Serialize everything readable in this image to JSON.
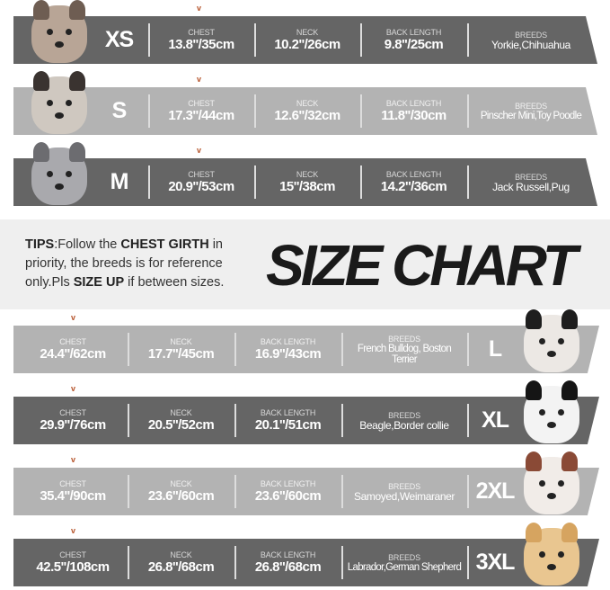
{
  "title": "SIZE CHART",
  "tips": {
    "lead": "TIPS",
    "t1": ":Follow the ",
    "b1": "CHEST GIRTH",
    "t2": " in priority, the breeds is for reference only.Pls ",
    "b2": "SIZE UP",
    "t3": " if between sizes."
  },
  "column_labels": {
    "chest": "CHEST",
    "neck": "NECK",
    "back": "BACK LENGTH",
    "breeds": "BREEDS"
  },
  "arrow_glyph": "v",
  "colors": {
    "dark_band": "#656565",
    "light_band": "#b3b3b3",
    "arrow": "#b5532a",
    "tips_bg": "#efefef"
  },
  "sizes": [
    {
      "size": "XS",
      "chest": "13.8''/35cm",
      "neck": "10.2''/26cm",
      "back": "9.8''/25cm",
      "breeds": "Yorkie,Chihuahua",
      "dog": "chihuahua"
    },
    {
      "size": "S",
      "chest": "17.3''/44cm",
      "neck": "12.6''/32cm",
      "back": "11.8''/30cm",
      "breeds": "Pinscher Mini,Toy Poodle",
      "dog": "shih-tzu"
    },
    {
      "size": "M",
      "chest": "20.9''/53cm",
      "neck": "15''/38cm",
      "back": "14.2''/36cm",
      "breeds": "Jack Russell,Pug",
      "dog": "schnauzer"
    },
    {
      "size": "L",
      "chest": "24.4''/62cm",
      "neck": "17.7''/45cm",
      "back": "16.9''/43cm",
      "breeds": "French Bulldog, Boston Terrier",
      "dog": "french-bulldog"
    },
    {
      "size": "XL",
      "chest": "29.9''/76cm",
      "neck": "20.5''/52cm",
      "back": "20.1''/51cm",
      "breeds": "Beagle,Border collie",
      "dog": "border-collie"
    },
    {
      "size": "2XL",
      "chest": "35.4''/90cm",
      "neck": "23.6''/60cm",
      "back": "23.6''/60cm",
      "breeds": "Samoyed,Weimaraner",
      "dog": "husky"
    },
    {
      "size": "3XL",
      "chest": "42.5''/108cm",
      "neck": "26.8''/68cm",
      "back": "26.8''/68cm",
      "breeds": "Labrador,German Shepherd",
      "dog": "labrador"
    }
  ]
}
